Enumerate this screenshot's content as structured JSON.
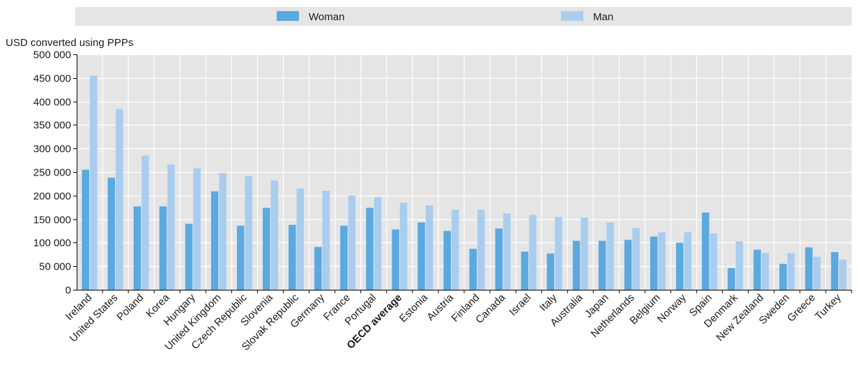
{
  "chart_data": {
    "type": "bar",
    "unit_label": "USD converted using PPPs",
    "categories": [
      "Ireland",
      "United States",
      "Poland",
      "Korea",
      "Hungary",
      "United Kingdom",
      "Czech Republic",
      "Slovenia",
      "Slovak Republic",
      "Germany",
      "France",
      "Portugal",
      "OECD average",
      "Estonia",
      "Austria",
      "Finland",
      "Canada",
      "Israel",
      "Italy",
      "Australia",
      "Japan",
      "Netherlands",
      "Belgium",
      "Norway",
      "Spain",
      "Denmark",
      "New Zealand",
      "Sweden",
      "Greece",
      "Turkey"
    ],
    "highlight_category": "OECD average",
    "series": [
      {
        "name": "Woman",
        "color": "#5aa9e0",
        "values": [
          255000,
          238000,
          177000,
          177000,
          140000,
          209000,
          136000,
          174000,
          138000,
          91000,
          136000,
          174000,
          128000,
          143000,
          125000,
          87000,
          130000,
          81000,
          77000,
          104000,
          104000,
          106000,
          113000,
          100000,
          164000,
          46000,
          85000,
          55000,
          90000,
          80000
        ]
      },
      {
        "name": "Man",
        "color": "#a9cdef",
        "values": [
          455000,
          384000,
          285000,
          266000,
          258000,
          248000,
          242000,
          232000,
          215000,
          210000,
          200000,
          197000,
          185000,
          179000,
          170000,
          170000,
          162000,
          159000,
          155000,
          153000,
          143000,
          131000,
          122000,
          122000,
          120000,
          103000,
          78000,
          78000,
          70000,
          64000
        ]
      }
    ],
    "ylim": [
      0,
      500000
    ],
    "yticks": [
      0,
      50000,
      100000,
      150000,
      200000,
      250000,
      300000,
      350000,
      400000,
      450000,
      500000
    ],
    "ytick_labels": [
      "0",
      "50 000",
      "100 000",
      "150 000",
      "200 000",
      "250 000",
      "300 000",
      "350 000",
      "400 000",
      "450 000",
      "500 000"
    ],
    "grid": true,
    "legend_position": "top"
  }
}
